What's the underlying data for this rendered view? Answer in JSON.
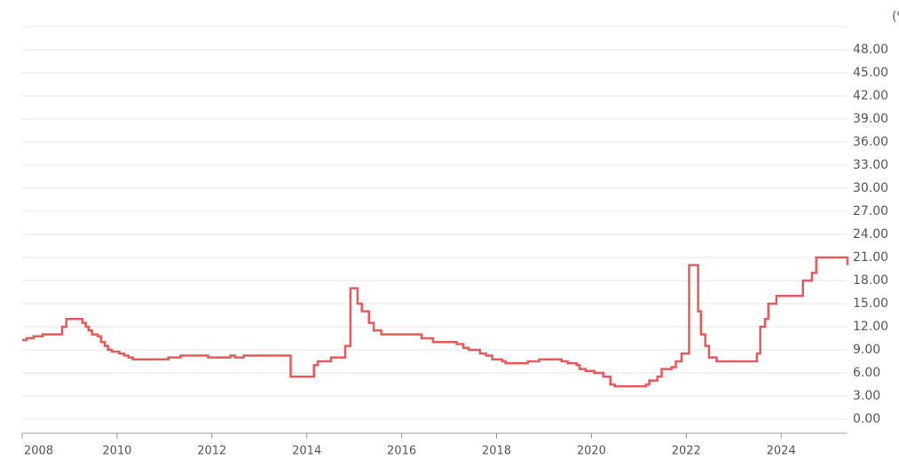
{
  "chart_data": {
    "type": "step-line",
    "unit_label": "(%)",
    "x": [
      2008.0,
      2008.09,
      2008.24,
      2008.43,
      2008.84,
      2008.93,
      2009.27,
      2009.34,
      2009.4,
      2009.47,
      2009.59,
      2009.66,
      2009.74,
      2009.81,
      2009.89,
      2010.05,
      2010.15,
      2010.24,
      2010.33,
      2011.08,
      2011.34,
      2011.92,
      2012.39,
      2012.49,
      2012.67,
      2013.66,
      2014.15,
      2014.23,
      2014.51,
      2014.81,
      2014.92,
      2015.07,
      2015.16,
      2015.31,
      2015.41,
      2015.57,
      2016.42,
      2016.66,
      2017.16,
      2017.3,
      2017.41,
      2017.65,
      2017.78,
      2017.91,
      2018.12,
      2018.19,
      2018.66,
      2018.9,
      2019.37,
      2019.5,
      2019.69,
      2019.75,
      2019.88,
      2020.06,
      2020.25,
      2020.4,
      2020.49,
      2021.15,
      2021.22,
      2021.39,
      2021.48,
      2021.69,
      2021.78,
      2021.9,
      2022.06,
      2022.25,
      2022.31,
      2022.4,
      2022.48,
      2022.64,
      2023.49,
      2023.56,
      2023.66,
      2023.73,
      2023.9,
      2024.46,
      2024.65,
      2024.74,
      2025.38,
      2025.4
    ],
    "values": [
      10.25,
      10.5,
      10.75,
      11.0,
      12.0,
      13.0,
      12.5,
      12.0,
      11.5,
      11.0,
      10.75,
      10.0,
      9.5,
      9.0,
      8.75,
      8.5,
      8.25,
      8.0,
      7.75,
      8.0,
      8.25,
      8.0,
      8.25,
      8.0,
      8.25,
      5.5,
      7.0,
      7.5,
      8.0,
      9.5,
      17.0,
      15.0,
      14.0,
      12.5,
      11.5,
      11.0,
      10.5,
      10.0,
      9.75,
      9.25,
      9.0,
      8.5,
      8.25,
      7.75,
      7.5,
      7.25,
      7.5,
      7.75,
      7.5,
      7.25,
      7.0,
      6.5,
      6.25,
      6.0,
      5.5,
      4.5,
      4.25,
      4.5,
      5.0,
      5.5,
      6.5,
      6.75,
      7.5,
      8.5,
      20.0,
      14.0,
      11.0,
      9.5,
      8.0,
      7.5,
      8.5,
      12.0,
      13.0,
      15.0,
      16.0,
      18.0,
      19.0,
      21.0,
      21.0,
      20.0
    ],
    "color": "#e8595b",
    "xlim": [
      2008,
      2025.4
    ],
    "xticks": [
      2008,
      2010,
      2012,
      2014,
      2016,
      2018,
      2020,
      2022,
      2024
    ],
    "ylim": [
      -1.85,
      51
    ],
    "yticks": [
      {
        "value": 0,
        "label": "0.00"
      },
      {
        "value": 3,
        "label": "3.00"
      },
      {
        "value": 6,
        "label": "6.00"
      },
      {
        "value": 9,
        "label": "9.00"
      },
      {
        "value": 12,
        "label": "12.00"
      },
      {
        "value": 15,
        "label": "15.00"
      },
      {
        "value": 18,
        "label": "18.00"
      },
      {
        "value": 21,
        "label": "21.00"
      },
      {
        "value": 24,
        "label": "24.00"
      },
      {
        "value": 27,
        "label": "27.00"
      },
      {
        "value": 30,
        "label": "30.00"
      },
      {
        "value": 33,
        "label": "33.00"
      },
      {
        "value": 36,
        "label": "36.00"
      },
      {
        "value": 39,
        "label": "39.00"
      },
      {
        "value": 42,
        "label": "42.00"
      },
      {
        "value": 45,
        "label": "45.00"
      },
      {
        "value": 48,
        "label": "48.00"
      }
    ],
    "grid": true
  }
}
